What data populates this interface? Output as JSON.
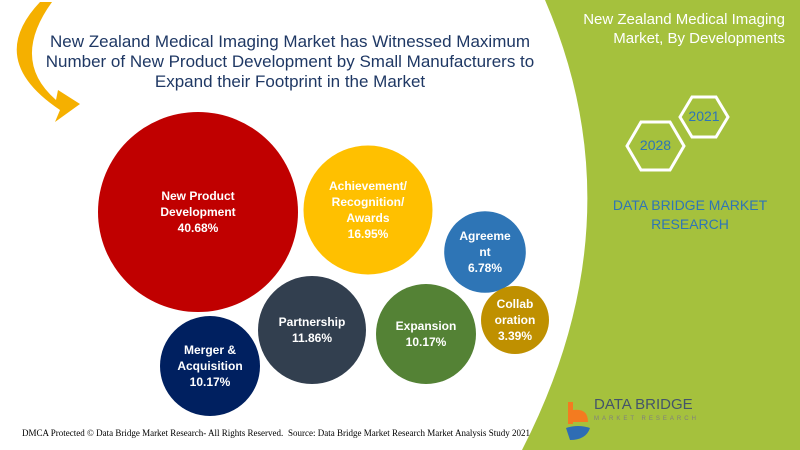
{
  "chart_data": {
    "type": "bubble",
    "title": "New Zealand Medical Imaging Market has Witnessed Maximum Number of New Product Development by Small Manufacturers to Expand their Footprint in the Market",
    "categories": [
      "New Product Development",
      "Achievement/ Recognition/ Awards",
      "Agreement",
      "Partnership",
      "Expansion",
      "Collaboration",
      "Merger & Acquisition"
    ],
    "labels": [
      "New Product\nDevelopment",
      "Achievement/\nRecognition/\nAwards",
      "Agreeme\nnt",
      "Partnership",
      "Expansion",
      "Collab\noration",
      "Merger &\nAcquisition"
    ],
    "values": [
      40.68,
      16.95,
      6.78,
      11.86,
      10.17,
      3.39,
      10.17
    ],
    "value_labels": [
      "40.68%",
      "16.95%",
      "6.78%",
      "11.86%",
      "10.17%",
      "3.39%",
      "10.17%"
    ],
    "colors": [
      "#c00000",
      "#ffc000",
      "#2e75b6",
      "#323f4f",
      "#548235",
      "#bf9000",
      "#002060"
    ]
  },
  "side": {
    "title": "New Zealand Medical Imaging Market, By Developments",
    "year_start": "2021",
    "year_end": "2028",
    "brand": "DATA BRIDGE MARKET RESEARCH",
    "accent": "#a5c13d"
  },
  "logo": {
    "name": "DATA BRIDGE",
    "sub": "MARKET RESEARCH"
  },
  "footer": {
    "copyright": "DMCA Protected © Data Bridge Market Research- All Rights Reserved.",
    "source": "Source: Data Bridge Market Research Market Analysis Study 2021"
  }
}
